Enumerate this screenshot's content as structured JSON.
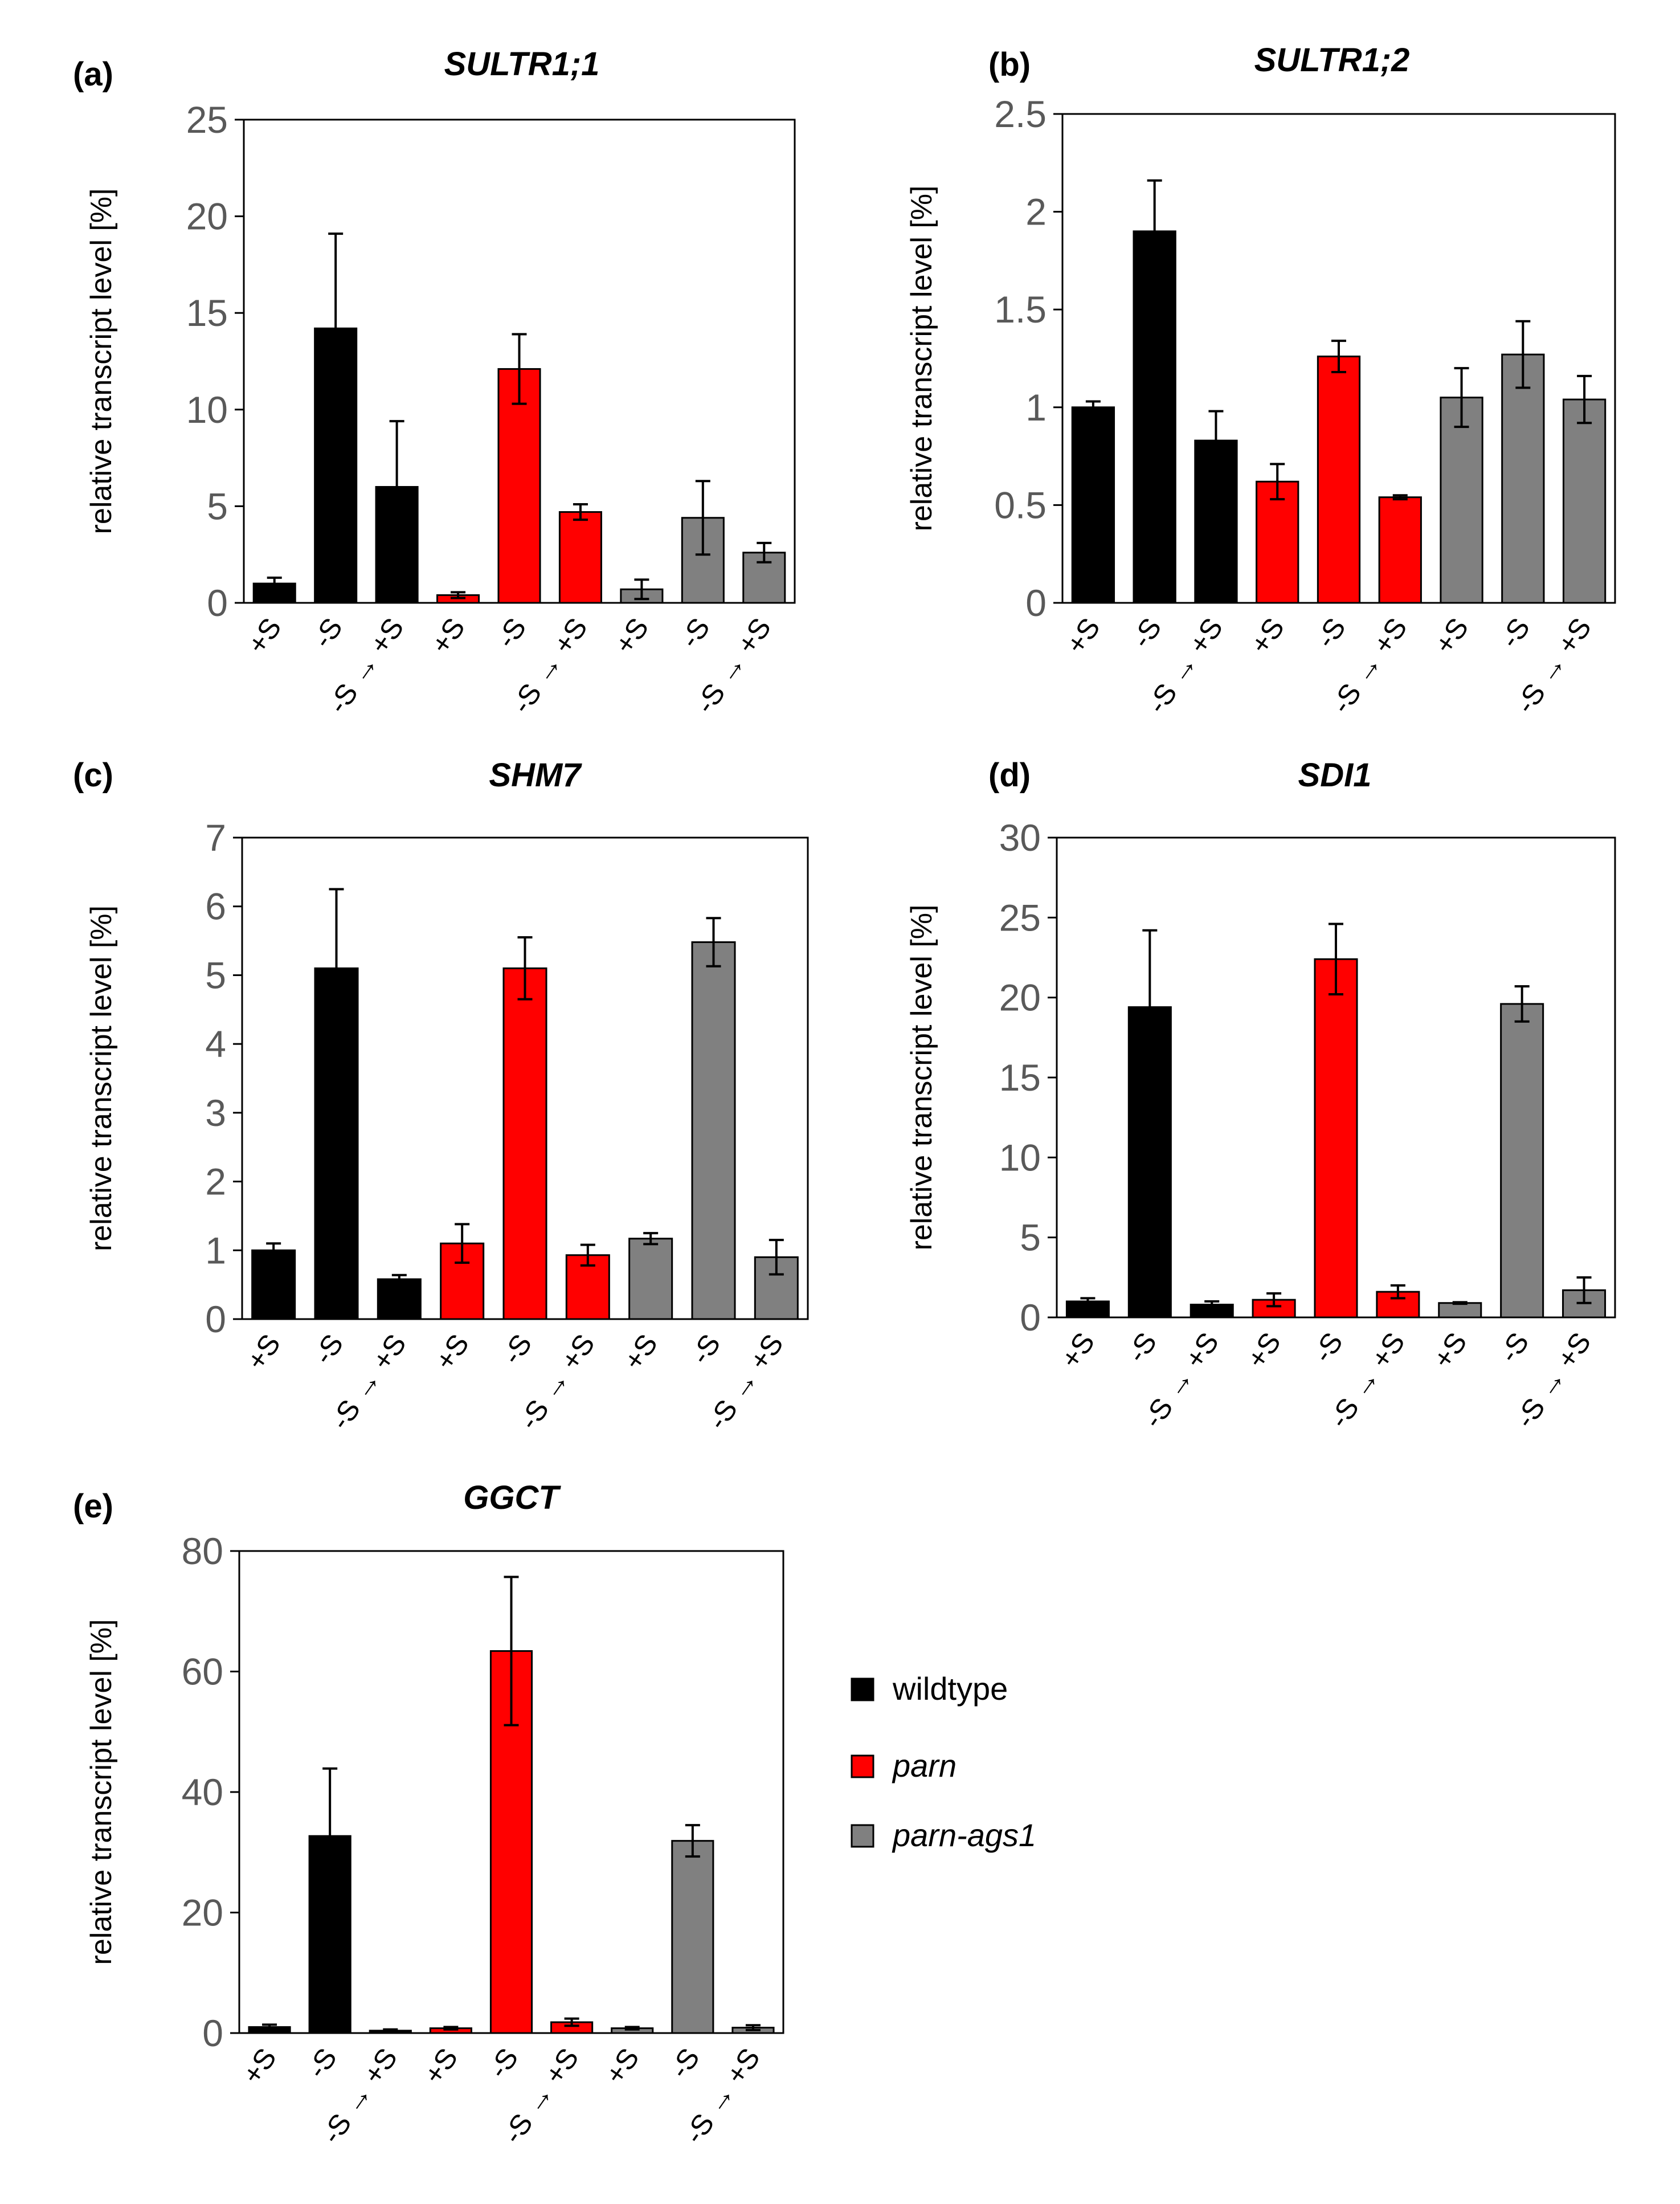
{
  "legend": [
    {
      "name": "wildtype",
      "color": "#000000",
      "italic": false
    },
    {
      "name": "parn",
      "color": "#ff0000",
      "italic": true
    },
    {
      "name": "parn-ags1",
      "color": "#808080",
      "italic": true
    }
  ],
  "chart_data": [
    {
      "id": "a",
      "letter": "(a)",
      "title": "SULTR1;1",
      "type": "bar",
      "ylabel": "relative transcript level [%]",
      "ylim": [
        0,
        25
      ],
      "yticks": [
        "0",
        "5",
        "10",
        "15",
        "20",
        "25"
      ],
      "categories": [
        "+S",
        "-S",
        "-S → +S",
        "+S",
        "-S",
        "-S → +S",
        "+S",
        "-S",
        "-S → +S"
      ],
      "groups": [
        "wildtype",
        "wildtype",
        "wildtype",
        "parn",
        "parn",
        "parn",
        "parn-ags1",
        "parn-ags1",
        "parn-ags1"
      ],
      "values": [
        1.0,
        14.2,
        6.0,
        0.4,
        12.1,
        4.7,
        0.7,
        4.4,
        2.6
      ],
      "errors": [
        0.3,
        4.9,
        3.4,
        0.15,
        1.8,
        0.4,
        0.5,
        1.9,
        0.5
      ]
    },
    {
      "id": "b",
      "letter": "(b)",
      "title": "SULTR1;2",
      "type": "bar",
      "ylabel": "relative transcript level [%]",
      "ylim": [
        0,
        2.5
      ],
      "yticks": [
        "0",
        "0.5",
        "1",
        "1.5",
        "2",
        "2.5"
      ],
      "categories": [
        "+S",
        "-S",
        "-S → +S",
        "+S",
        "-S",
        "-S → +S",
        "+S",
        "-S",
        "-S → +S"
      ],
      "groups": [
        "wildtype",
        "wildtype",
        "wildtype",
        "parn",
        "parn",
        "parn",
        "parn-ags1",
        "parn-ags1",
        "parn-ags1"
      ],
      "values": [
        1.0,
        1.9,
        0.83,
        0.62,
        1.26,
        0.54,
        1.05,
        1.27,
        1.04
      ],
      "errors": [
        0.03,
        0.26,
        0.15,
        0.09,
        0.08,
        0.01,
        0.15,
        0.17,
        0.12
      ]
    },
    {
      "id": "c",
      "letter": "(c)",
      "title": "SHM7",
      "type": "bar",
      "ylabel": "relative transcript level [%]",
      "ylim": [
        0,
        7
      ],
      "yticks": [
        "0",
        "1",
        "2",
        "3",
        "4",
        "5",
        "6",
        "7"
      ],
      "categories": [
        "+S",
        "-S",
        "-S → +S",
        "+S",
        "-S",
        "-S → +S",
        "+S",
        "-S",
        "-S → +S"
      ],
      "groups": [
        "wildtype",
        "wildtype",
        "wildtype",
        "parn",
        "parn",
        "parn",
        "parn-ags1",
        "parn-ags1",
        "parn-ags1"
      ],
      "values": [
        1.0,
        5.1,
        0.58,
        1.1,
        5.1,
        0.93,
        1.17,
        5.48,
        0.9
      ],
      "errors": [
        0.1,
        1.15,
        0.06,
        0.28,
        0.45,
        0.15,
        0.08,
        0.35,
        0.25
      ]
    },
    {
      "id": "d",
      "letter": "(d)",
      "title": "SDI1",
      "type": "bar",
      "ylabel": "relative transcript level [%]",
      "ylim": [
        0,
        30
      ],
      "yticks": [
        "0",
        "5",
        "10",
        "15",
        "20",
        "25",
        "30"
      ],
      "categories": [
        "+S",
        "-S",
        "-S → +S",
        "+S",
        "-S",
        "-S → +S",
        "+S",
        "-S",
        "-S → +S"
      ],
      "groups": [
        "wildtype",
        "wildtype",
        "wildtype",
        "parn",
        "parn",
        "parn",
        "parn-ags1",
        "parn-ags1",
        "parn-ags1"
      ],
      "values": [
        1.0,
        19.4,
        0.8,
        1.1,
        22.4,
        1.6,
        0.9,
        19.6,
        1.7
      ],
      "errors": [
        0.2,
        4.8,
        0.2,
        0.4,
        2.2,
        0.4,
        0.05,
        1.1,
        0.8
      ]
    },
    {
      "id": "e",
      "letter": "(e)",
      "title": "GGCT",
      "type": "bar",
      "ylabel": "relative transcript level [%]",
      "ylim": [
        0,
        80
      ],
      "yticks": [
        "0",
        "20",
        "40",
        "60",
        "80"
      ],
      "categories": [
        "+S",
        "-S",
        "-S → +S",
        "+S",
        "-S",
        "-S → +S",
        "+S",
        "-S",
        "-S → +S"
      ],
      "groups": [
        "wildtype",
        "wildtype",
        "wildtype",
        "parn",
        "parn",
        "parn",
        "parn-ags1",
        "parn-ags1",
        "parn-ags1"
      ],
      "values": [
        1.0,
        32.7,
        0.4,
        0.8,
        63.4,
        1.8,
        0.8,
        31.9,
        0.9
      ],
      "errors": [
        0.4,
        11.2,
        0.2,
        0.2,
        12.3,
        0.6,
        0.2,
        2.6,
        0.4
      ]
    }
  ]
}
